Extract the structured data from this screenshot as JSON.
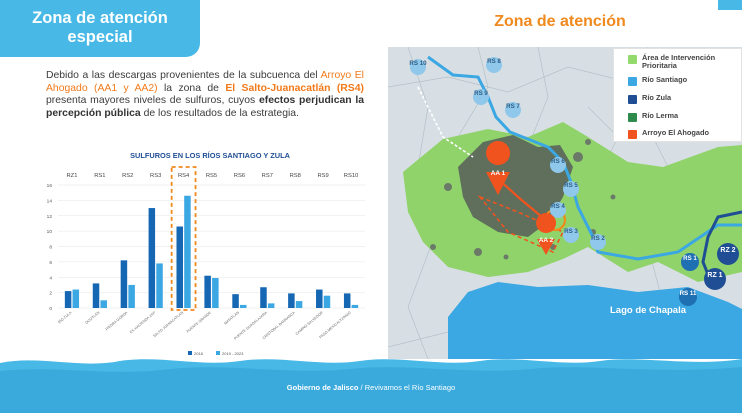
{
  "header": {
    "title_line1": "Zona de atención",
    "title_line2": "especial"
  },
  "paragraph": {
    "p1": "Debido a las descargas provenientes de la subcuenca del",
    "p2": "Arroyo El Ahogado (AA1 y AA2)",
    "p3": " la zona de ",
    "p4": "El Salto-Juanacatlán (RS4)",
    "p5": " presenta mayores niveles de sulfuros, cuyos ",
    "p6": "efectos perjudican la percepción pública",
    "p7": " de los resultados de la estrategia."
  },
  "chart_data": {
    "type": "bar",
    "title": "SULFUROS EN LOS RÍOS SANTIAGO Y ZULA",
    "zones": [
      "RZ1",
      "RS1",
      "RS2",
      "RS3",
      "RS4",
      "RS5",
      "RS6",
      "RS7",
      "RS8",
      "RS9",
      "RS10"
    ],
    "highlight_zone": "RS4",
    "y_ticks": [
      0,
      2,
      4,
      6,
      8,
      10,
      12,
      14,
      16
    ],
    "ylim": [
      0,
      16
    ],
    "categories": [
      "RÍO ZULA",
      "OCOTLÁN",
      "PIEDRA GORDA",
      "EX HACIENDA ZAP",
      "SALTO JUANACATLÁN",
      "PUENTE GRANDE",
      "MATATLÁN",
      "PUENTE GUADALAJARA",
      "CRISTOBAL BARRANCA",
      "CAMINO SALVADOR",
      "PASO MEXICALTZINGO"
    ],
    "series": [
      {
        "name": "2018",
        "color": "#1566b3",
        "values": [
          2.2,
          3.2,
          6.2,
          13.0,
          10.6,
          4.2,
          1.8,
          2.7,
          1.9,
          2.4,
          1.9
        ]
      },
      {
        "name": "2019 - 2023",
        "color": "#3ba7e3",
        "values": [
          2.4,
          1.0,
          3.0,
          5.8,
          14.6,
          3.9,
          0.4,
          0.6,
          0.9,
          1.6,
          0.4
        ]
      }
    ],
    "grid": true
  },
  "map": {
    "title": "Zona de atención",
    "lake_label": "Lago de Chapala",
    "legend": [
      {
        "label": "Área de Intervención Prioritaria",
        "color": "#93d96b"
      },
      {
        "label": "Río Santiago",
        "color": "#3ba7e3"
      },
      {
        "label": "Río Zula",
        "color": "#1f4e94"
      },
      {
        "label": "Río Lerma",
        "color": "#2f8b4c"
      },
      {
        "label": "Arroyo El Ahogado",
        "color": "#f0531e"
      }
    ],
    "markers_rs": [
      {
        "label": "RS 10"
      },
      {
        "label": "RS 8"
      },
      {
        "label": "RS 9"
      },
      {
        "label": "RS 7"
      },
      {
        "label": "RS 6"
      },
      {
        "label": "RS 5"
      },
      {
        "label": "RS 4"
      },
      {
        "label": "RS 3"
      },
      {
        "label": "RS 2"
      },
      {
        "label": "RS 1"
      },
      {
        "label": "RS 11"
      }
    ],
    "markers_rz": [
      {
        "label": "RZ 2"
      },
      {
        "label": "RZ 1"
      }
    ],
    "markers_aa": [
      {
        "label": "AA 1"
      },
      {
        "label": "AA 2"
      }
    ]
  },
  "footer": {
    "org": "Gobierno de Jalisco",
    "sep": " / ",
    "campaign": "Revivamos el Río Santiago"
  }
}
